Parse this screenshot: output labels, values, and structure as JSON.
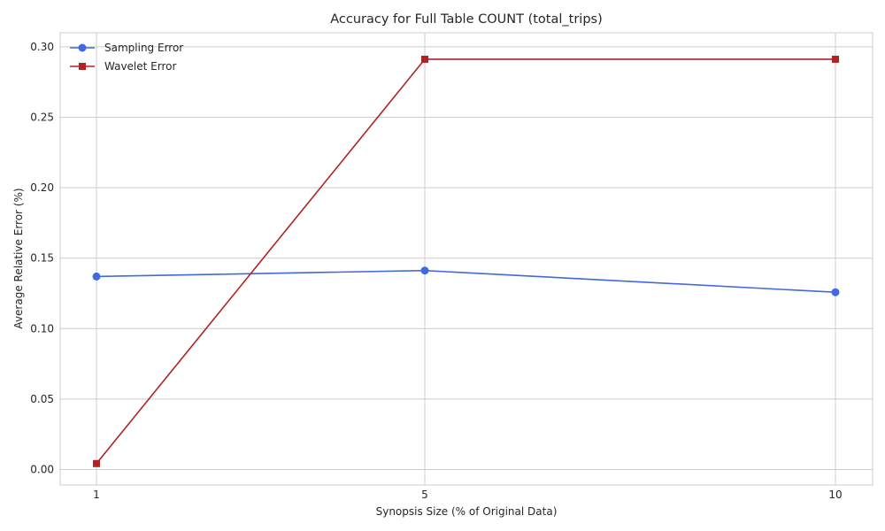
{
  "chart_data": {
    "type": "line",
    "title": "Accuracy for Full Table COUNT (total_trips)",
    "xlabel": "Synopsis Size (% of Original Data)",
    "ylabel": "Average Relative Error (%)",
    "x": [
      1,
      5,
      10
    ],
    "x_tick_labels": [
      "1",
      "5",
      "10"
    ],
    "ylim": [
      -0.011,
      0.31
    ],
    "y_ticks": [
      0.0,
      0.05,
      0.1,
      0.15,
      0.2,
      0.25,
      0.3
    ],
    "y_tick_labels": [
      "0.00",
      "0.05",
      "0.10",
      "0.15",
      "0.20",
      "0.25",
      "0.30"
    ],
    "grid": true,
    "legend_position": "top-left",
    "series": [
      {
        "name": "Sampling Error",
        "color": "#4169e1",
        "marker": "circle",
        "values": [
          0.137,
          0.1412,
          0.1258
        ]
      },
      {
        "name": "Wavelet Error",
        "color": "#b22222",
        "marker": "square",
        "values": [
          0.0042,
          0.2912,
          0.2912
        ]
      }
    ]
  }
}
